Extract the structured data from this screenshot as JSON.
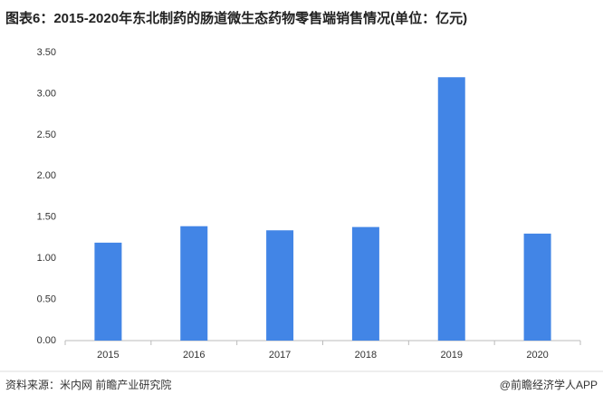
{
  "chart_data": {
    "type": "bar",
    "title": "图表6：2015-2020年东北制药的肠道微生态药物零售端销售情况(单位：亿元)",
    "categories": [
      "2015",
      "2016",
      "2017",
      "2018",
      "2019",
      "2020"
    ],
    "values": [
      1.19,
      1.39,
      1.34,
      1.38,
      3.2,
      1.3
    ],
    "color": "#4285e6",
    "ylim": [
      0,
      3.5
    ],
    "yticks": [
      {
        "value": 0,
        "label": "0.00"
      },
      {
        "value": 0.5,
        "label": "0.50"
      },
      {
        "value": 1,
        "label": "1.00"
      },
      {
        "value": 1.5,
        "label": "1.50"
      },
      {
        "value": 2,
        "label": "2.00"
      },
      {
        "value": 2.5,
        "label": "2.50"
      },
      {
        "value": 3,
        "label": "3.00"
      },
      {
        "value": 3.5,
        "label": "3.50"
      }
    ],
    "grid": false,
    "source": "资料来源：米内网 前瞻产业研究院",
    "credit": "@前瞻经济学人APP"
  }
}
